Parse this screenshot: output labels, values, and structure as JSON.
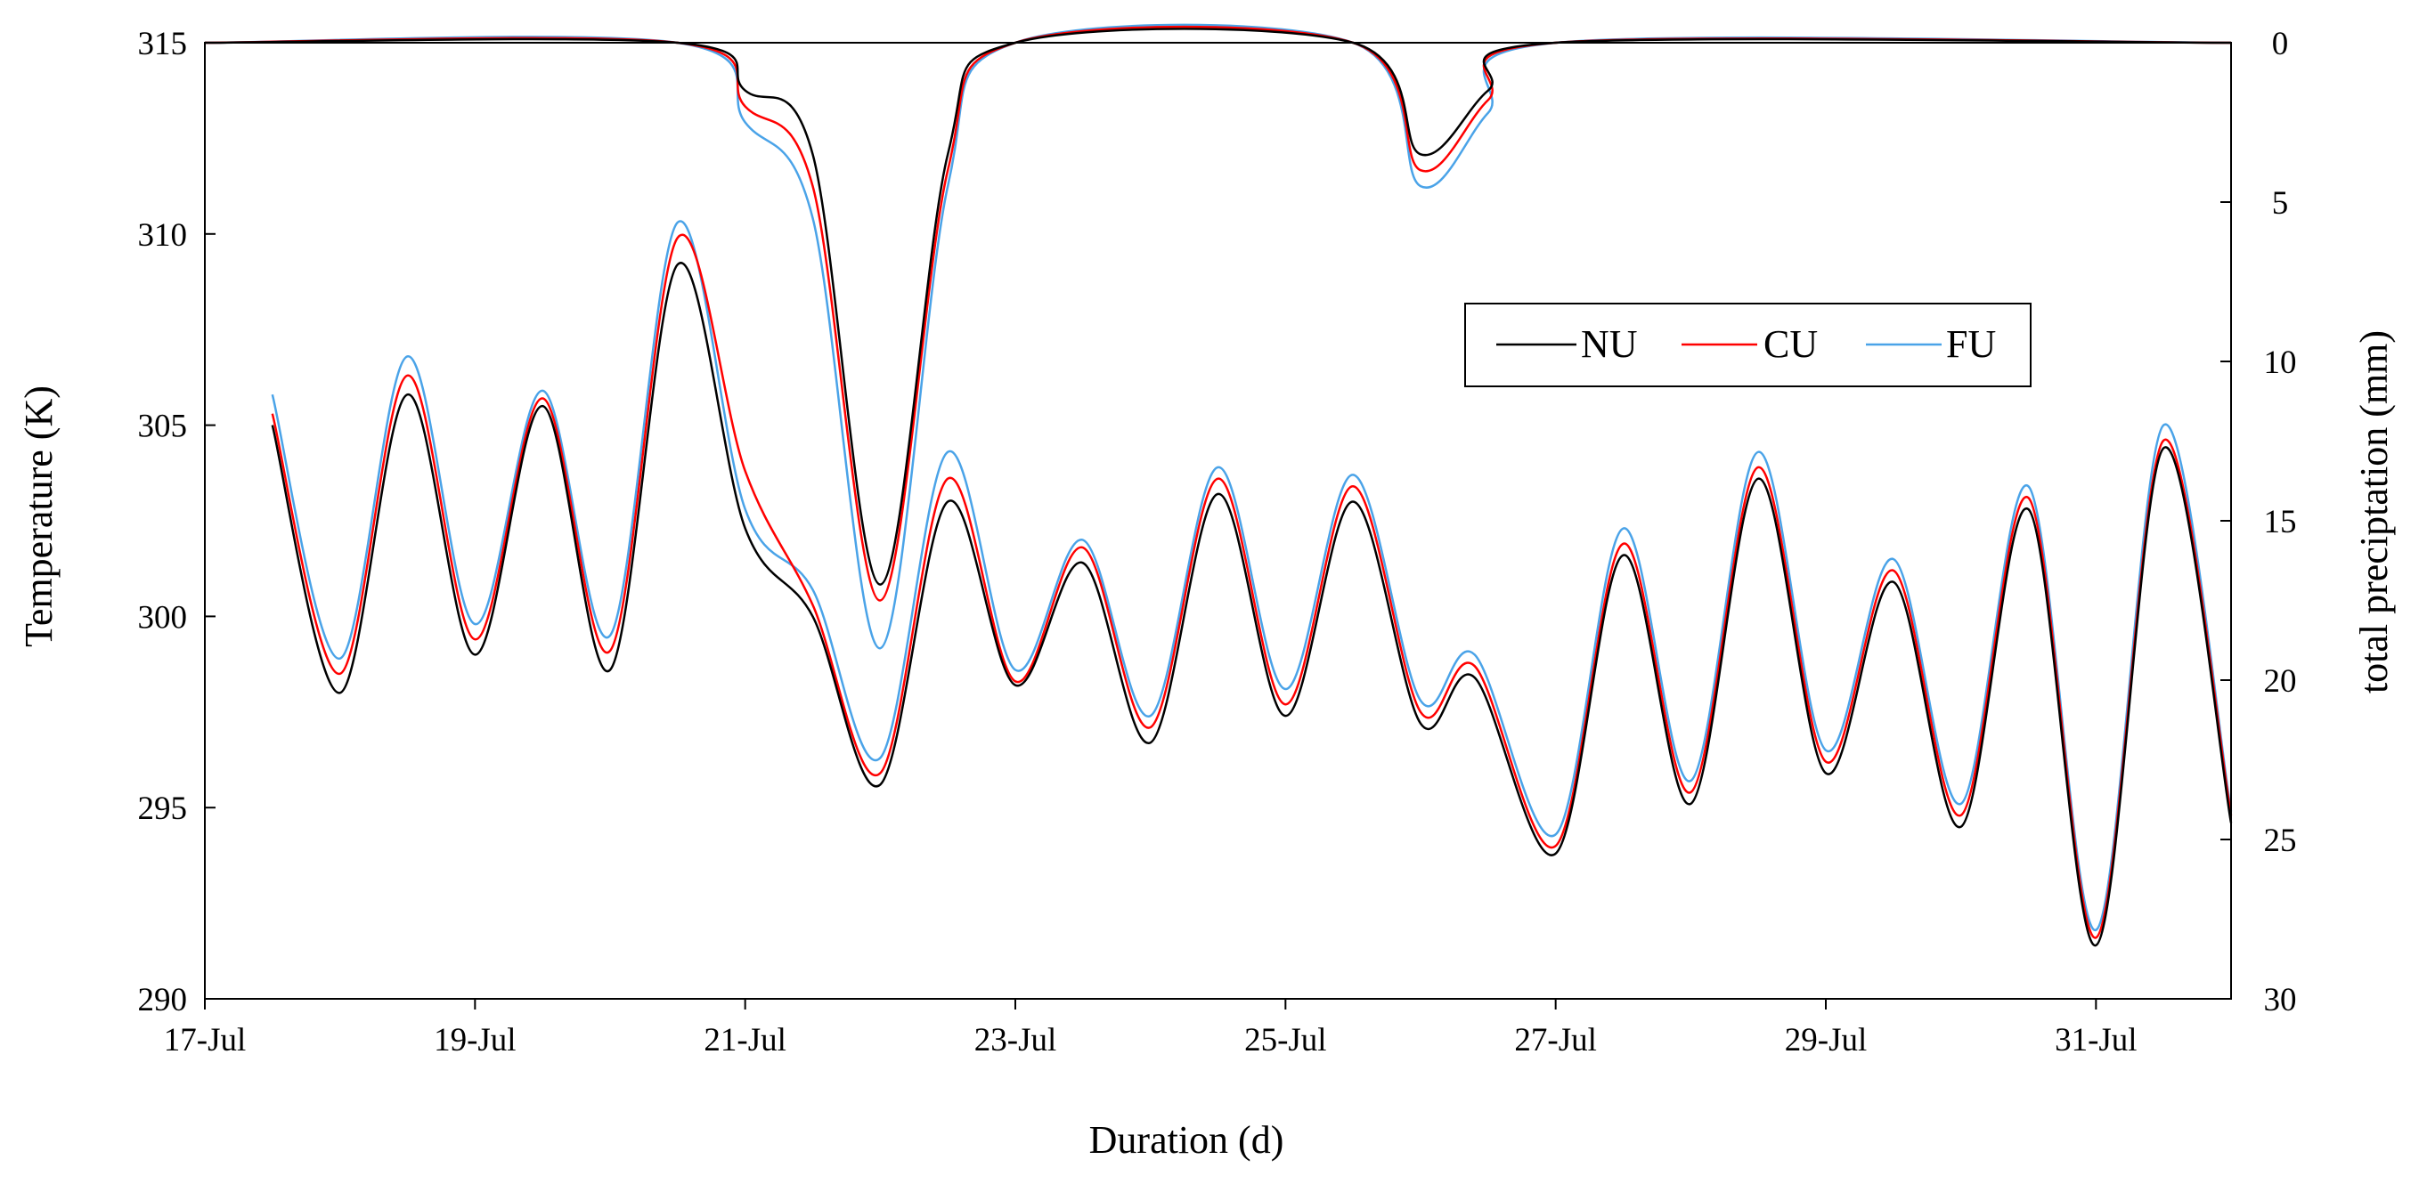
{
  "chart_data": {
    "type": "line",
    "title": "",
    "xlabel": "Duration (d)",
    "ylabel_left": "Temperature (K)",
    "ylabel_right": "total preciptation (mm)",
    "x_range": [
      "17-Jul",
      "1-Aug"
    ],
    "x_ticks": [
      "17-Jul",
      "19-Jul",
      "21-Jul",
      "23-Jul",
      "25-Jul",
      "27-Jul",
      "29-Jul",
      "31-Jul"
    ],
    "y_left_range": [
      290,
      315
    ],
    "y_left_ticks": [
      "290",
      "295",
      "300",
      "305",
      "310",
      "315"
    ],
    "y_right_range": [
      0,
      30
    ],
    "y_right_reversed": true,
    "y_right_ticks": [
      "0",
      "5",
      "10",
      "15",
      "20",
      "25",
      "30"
    ],
    "grid": false,
    "legend": {
      "position": "upper-right",
      "entries": [
        "NU",
        "CU",
        "FU"
      ]
    },
    "colors": {
      "NU": "#000000",
      "CU": "#ff0000",
      "FU": "#4aa3e8"
    },
    "temperature_series": [
      {
        "name": "NU",
        "axis": "left",
        "points": [
          [
            0.5,
            305.0
          ],
          [
            1.0,
            298.0
          ],
          [
            1.5,
            305.8
          ],
          [
            2.0,
            299.0
          ],
          [
            2.5,
            305.5
          ],
          [
            3.0,
            298.6
          ],
          [
            3.5,
            309.2
          ],
          [
            4.0,
            302.3
          ],
          [
            4.5,
            300.0
          ],
          [
            5.0,
            295.6
          ],
          [
            5.5,
            303.0
          ],
          [
            6.0,
            298.2
          ],
          [
            6.5,
            301.4
          ],
          [
            7.0,
            296.7
          ],
          [
            7.5,
            303.2
          ],
          [
            8.0,
            297.4
          ],
          [
            8.5,
            303.0
          ],
          [
            9.0,
            297.2
          ],
          [
            9.4,
            298.4
          ],
          [
            10.0,
            293.8
          ],
          [
            10.5,
            301.6
          ],
          [
            11.0,
            295.1
          ],
          [
            11.5,
            303.6
          ],
          [
            12.0,
            295.9
          ],
          [
            12.5,
            300.9
          ],
          [
            13.0,
            294.5
          ],
          [
            13.5,
            302.8
          ],
          [
            14.0,
            291.4
          ],
          [
            14.5,
            304.4
          ],
          [
            15.0,
            294.6
          ]
        ]
      },
      {
        "name": "CU",
        "axis": "left",
        "points": [
          [
            0.5,
            305.3
          ],
          [
            1.0,
            298.5
          ],
          [
            1.5,
            306.3
          ],
          [
            2.0,
            299.4
          ],
          [
            2.5,
            305.7
          ],
          [
            3.0,
            299.1
          ],
          [
            3.5,
            309.9
          ],
          [
            4.0,
            303.8
          ],
          [
            4.5,
            300.3
          ],
          [
            5.0,
            295.9
          ],
          [
            5.5,
            303.6
          ],
          [
            6.0,
            298.3
          ],
          [
            6.5,
            301.8
          ],
          [
            7.0,
            297.1
          ],
          [
            7.5,
            303.6
          ],
          [
            8.0,
            297.7
          ],
          [
            8.5,
            303.4
          ],
          [
            9.0,
            297.5
          ],
          [
            9.4,
            298.7
          ],
          [
            10.0,
            294.0
          ],
          [
            10.5,
            301.9
          ],
          [
            11.0,
            295.4
          ],
          [
            11.5,
            303.9
          ],
          [
            12.0,
            296.2
          ],
          [
            12.5,
            301.2
          ],
          [
            13.0,
            294.8
          ],
          [
            13.5,
            303.1
          ],
          [
            14.0,
            291.6
          ],
          [
            14.5,
            304.6
          ],
          [
            15.0,
            294.8
          ]
        ]
      },
      {
        "name": "FU",
        "axis": "left",
        "points": [
          [
            0.5,
            305.8
          ],
          [
            1.0,
            298.9
          ],
          [
            1.5,
            306.8
          ],
          [
            2.0,
            299.8
          ],
          [
            2.5,
            305.9
          ],
          [
            3.0,
            299.5
          ],
          [
            3.5,
            310.3
          ],
          [
            4.0,
            302.8
          ],
          [
            4.5,
            300.7
          ],
          [
            5.0,
            296.3
          ],
          [
            5.5,
            304.3
          ],
          [
            6.0,
            298.6
          ],
          [
            6.5,
            302.0
          ],
          [
            7.0,
            297.4
          ],
          [
            7.5,
            303.9
          ],
          [
            8.0,
            298.1
          ],
          [
            8.5,
            303.7
          ],
          [
            9.0,
            297.8
          ],
          [
            9.4,
            299.0
          ],
          [
            10.0,
            294.3
          ],
          [
            10.5,
            302.3
          ],
          [
            11.0,
            295.7
          ],
          [
            11.5,
            304.3
          ],
          [
            12.0,
            296.5
          ],
          [
            12.5,
            301.5
          ],
          [
            13.0,
            295.1
          ],
          [
            13.5,
            303.4
          ],
          [
            14.0,
            291.8
          ],
          [
            14.5,
            305.0
          ],
          [
            15.0,
            294.9
          ]
        ]
      }
    ],
    "precipitation_series": [
      {
        "name": "NU",
        "axis": "right",
        "points": [
          [
            0.0,
            0.0
          ],
          [
            3.5,
            0.0
          ],
          [
            4.0,
            1.5
          ],
          [
            4.5,
            3.5
          ],
          [
            5.0,
            17.0
          ],
          [
            5.5,
            3.5
          ],
          [
            6.0,
            0.0
          ],
          [
            8.5,
            0.0
          ],
          [
            9.0,
            3.5
          ],
          [
            9.5,
            1.5
          ],
          [
            10.0,
            0.0
          ],
          [
            15.0,
            0.0
          ]
        ]
      },
      {
        "name": "CU",
        "axis": "right",
        "points": [
          [
            0.0,
            0.0
          ],
          [
            3.5,
            0.0
          ],
          [
            4.0,
            2.0
          ],
          [
            4.5,
            4.5
          ],
          [
            5.0,
            17.5
          ],
          [
            5.5,
            4.0
          ],
          [
            6.0,
            0.0
          ],
          [
            8.5,
            0.0
          ],
          [
            9.0,
            4.0
          ],
          [
            9.5,
            1.8
          ],
          [
            10.0,
            0.0
          ],
          [
            15.0,
            0.0
          ]
        ]
      },
      {
        "name": "FU",
        "axis": "right",
        "points": [
          [
            0.0,
            0.0
          ],
          [
            3.5,
            0.0
          ],
          [
            4.0,
            2.5
          ],
          [
            4.5,
            5.5
          ],
          [
            5.0,
            19.0
          ],
          [
            5.5,
            4.5
          ],
          [
            6.0,
            0.0
          ],
          [
            8.5,
            0.0
          ],
          [
            9.0,
            4.5
          ],
          [
            9.5,
            2.2
          ],
          [
            10.0,
            0.0
          ],
          [
            15.0,
            0.0
          ]
        ]
      }
    ]
  }
}
